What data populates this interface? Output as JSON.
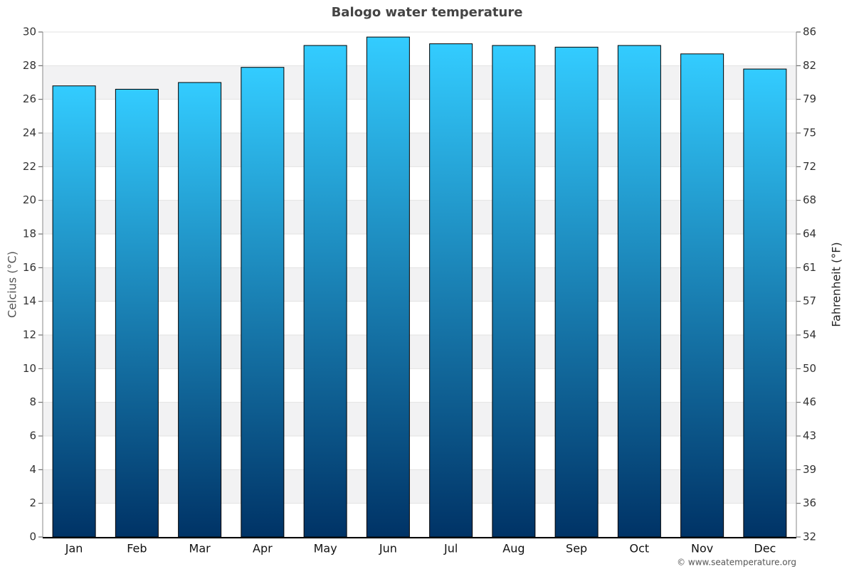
{
  "chart_data": {
    "type": "bar",
    "title": "Balogo water temperature",
    "y_label": "Celcius (°C)",
    "y2_label": "Fahrenheit (°F)",
    "credit": "© www.seatemperature.org",
    "categories": [
      "Jan",
      "Feb",
      "Mar",
      "Apr",
      "May",
      "Jun",
      "Jul",
      "Aug",
      "Sep",
      "Oct",
      "Nov",
      "Dec"
    ],
    "values": [
      26.8,
      26.6,
      27.0,
      27.9,
      29.2,
      29.7,
      29.3,
      29.2,
      29.1,
      29.2,
      28.7,
      27.8
    ],
    "color": [
      "#33ccff",
      "#003366"
    ],
    "ylim": [
      0,
      30
    ],
    "yticks": [
      0,
      2,
      4,
      6,
      8,
      10,
      12,
      14,
      16,
      18,
      20,
      22,
      24,
      26,
      28,
      30
    ],
    "y2lim": [
      32,
      86
    ],
    "y2ticks": [
      32,
      {
        "value": 35.6,
        "label": "36"
      },
      {
        "value": 39.2,
        "label": "39"
      },
      {
        "value": 42.8,
        "label": "43"
      },
      {
        "value": 46.4,
        "label": "46"
      },
      50,
      {
        "value": 53.6,
        "label": "54"
      },
      {
        "value": 57.2,
        "label": "57"
      },
      {
        "value": 60.8,
        "label": "61"
      },
      {
        "value": 64.4,
        "label": "64"
      },
      68,
      {
        "value": 71.6,
        "label": "72"
      },
      {
        "value": 75.2,
        "label": "75"
      },
      {
        "value": 78.8,
        "label": "79"
      },
      {
        "value": 82.4,
        "label": "82"
      },
      86
    ],
    "grid": true
  }
}
